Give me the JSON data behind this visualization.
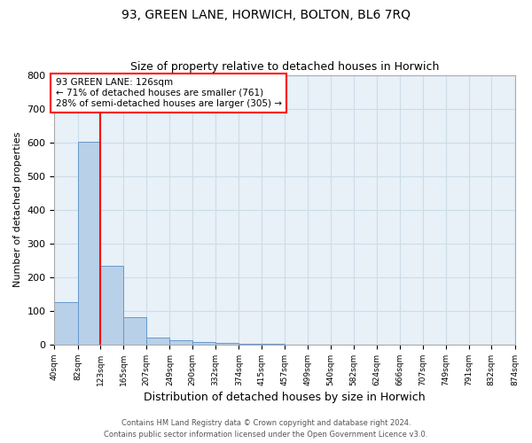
{
  "title1": "93, GREEN LANE, HORWICH, BOLTON, BL6 7RQ",
  "title2": "Size of property relative to detached houses in Horwich",
  "xlabel": "Distribution of detached houses by size in Horwich",
  "ylabel": "Number of detached properties",
  "bar_edges": [
    40,
    82,
    123,
    165,
    207,
    249,
    290,
    332,
    374,
    415,
    457,
    499,
    540,
    582,
    624,
    666,
    707,
    749,
    791,
    832,
    874
  ],
  "bar_heights": [
    126,
    601,
    235,
    82,
    22,
    13,
    8,
    4,
    3,
    2,
    1,
    1,
    0,
    0,
    0,
    0,
    0,
    0,
    0,
    1
  ],
  "bar_color": "#b8d0e8",
  "bar_edge_color": "#6699cc",
  "vline_x": 123,
  "vline_color": "red",
  "annotation_text": "93 GREEN LANE: 126sqm\n← 71% of detached houses are smaller (761)\n28% of semi-detached houses are larger (305) →",
  "annotation_box_color": "white",
  "annotation_box_edge_color": "red",
  "ylim": [
    0,
    800
  ],
  "yticks": [
    0,
    100,
    200,
    300,
    400,
    500,
    600,
    700,
    800
  ],
  "grid_color": "#ccdde8",
  "background_color": "#e8f0f8",
  "footer1": "Contains HM Land Registry data © Crown copyright and database right 2024.",
  "footer2": "Contains public sector information licensed under the Open Government Licence v3.0.",
  "tick_labels": [
    "40sqm",
    "82sqm",
    "123sqm",
    "165sqm",
    "207sqm",
    "249sqm",
    "290sqm",
    "332sqm",
    "374sqm",
    "415sqm",
    "457sqm",
    "499sqm",
    "540sqm",
    "582sqm",
    "624sqm",
    "666sqm",
    "707sqm",
    "749sqm",
    "791sqm",
    "832sqm",
    "874sqm"
  ]
}
